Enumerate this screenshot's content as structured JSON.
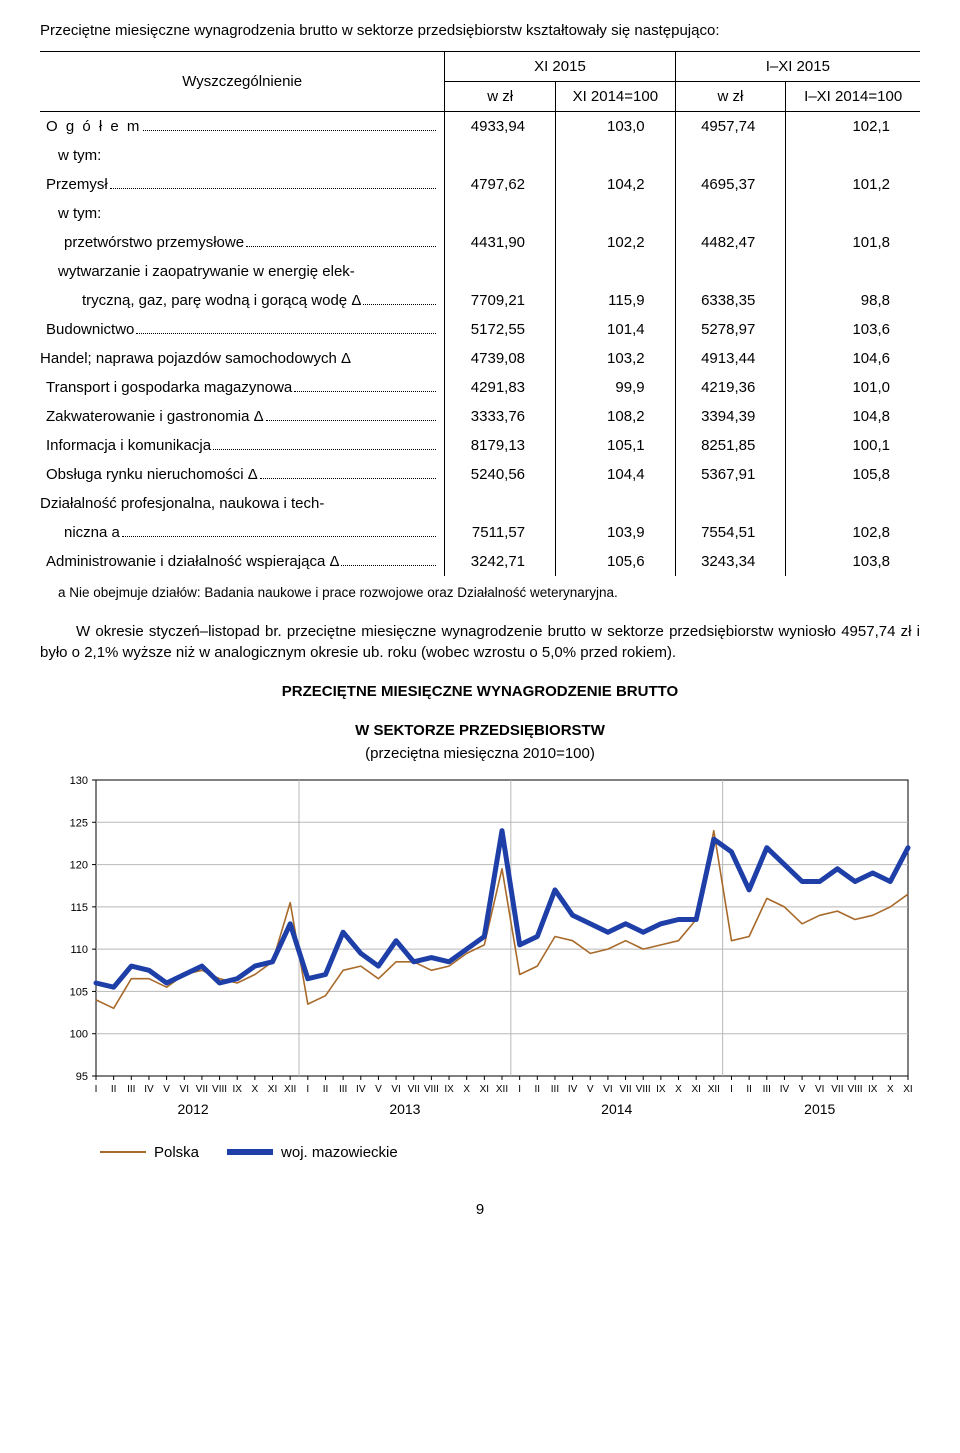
{
  "intro": "Przeciętne miesięczne wynagrodzenia brutto w sektorze przedsiębiorstw kształtowały się następująco:",
  "table": {
    "header": {
      "rowLabel": "Wyszczególnienie",
      "period1": "XI 2015",
      "period2": "I–XI 2015",
      "col1": "w zł",
      "col2": "XI 2014=100",
      "col3": "w zł",
      "col4": "I–XI 2014=100"
    },
    "rows": [
      {
        "label": "O g ó ł e m",
        "spaced": true,
        "indent": 0,
        "c1": "4933,94",
        "c2": "103,0",
        "c3": "4957,74",
        "c4": "102,1"
      },
      {
        "label": "w tym:",
        "indent": 1,
        "plain": true
      },
      {
        "label": "Przemysł",
        "indent": 0,
        "c1": "4797,62",
        "c2": "104,2",
        "c3": "4695,37",
        "c4": "101,2"
      },
      {
        "label": "w tym:",
        "indent": 1,
        "plain": true
      },
      {
        "label": "przetwórstwo przemysłowe",
        "indent": 1,
        "c1": "4431,90",
        "c2": "102,2",
        "c3": "4482,47",
        "c4": "101,8"
      },
      {
        "label": "wytwarzanie i zaopatrywanie w energię elek-",
        "indent": 1,
        "plain": true
      },
      {
        "label": "tryczną, gaz, parę wodną i gorącą wodę Δ",
        "indent": 2,
        "c1": "7709,21",
        "c2": "115,9",
        "c3": "6338,35",
        "c4": "98,8"
      },
      {
        "label": "Budownictwo",
        "indent": 0,
        "c1": "5172,55",
        "c2": "101,4",
        "c3": "5278,97",
        "c4": "103,6"
      },
      {
        "label": "Handel; naprawa pojazdów samochodowych Δ",
        "indent": 0,
        "nodots": true,
        "c1": "4739,08",
        "c2": "103,2",
        "c3": "4913,44",
        "c4": "104,6"
      },
      {
        "label": "Transport i gospodarka magazynowa",
        "indent": 0,
        "c1": "4291,83",
        "c2": "99,9",
        "c3": "4219,36",
        "c4": "101,0"
      },
      {
        "label": "Zakwaterowanie i gastronomia Δ",
        "indent": 0,
        "c1": "3333,76",
        "c2": "108,2",
        "c3": "3394,39",
        "c4": "104,8"
      },
      {
        "label": "Informacja i komunikacja",
        "indent": 0,
        "c1": "8179,13",
        "c2": "105,1",
        "c3": "8251,85",
        "c4": "100,1"
      },
      {
        "label": "Obsługa rynku nieruchomości Δ",
        "indent": 0,
        "c1": "5240,56",
        "c2": "104,4",
        "c3": "5367,91",
        "c4": "105,8"
      },
      {
        "label": "Działalność profesjonalna, naukowa i tech-",
        "indent": 0,
        "plain": true
      },
      {
        "label": "niczna a",
        "indent": 1,
        "c1": "7511,57",
        "c2": "103,9",
        "c3": "7554,51",
        "c4": "102,8"
      },
      {
        "label": "Administrowanie i działalność wspierająca Δ",
        "indent": 0,
        "c1": "3242,71",
        "c2": "105,6",
        "c3": "3243,34",
        "c4": "103,8"
      }
    ]
  },
  "footnote": "a Nie obejmuje działów: Badania naukowe i prace rozwojowe oraz Działalność weterynaryjna.",
  "paragraph": "W okresie styczeń–listopad br. przeciętne miesięczne wynagrodzenie brutto w sektorze przedsiębiorstw wyniosło 4957,74 zł i było o 2,1% wyższe niż w analogicznym okresie ub. roku (wobec wzrostu o 5,0% przed rokiem).",
  "chart": {
    "title1": "PRZECIĘTNE  MIESIĘCZNE  WYNAGRODZENIE  BRUTTO",
    "title2": "W  SEKTORZE  PRZEDSIĘBIORSTW",
    "subtitle": "(przeciętna miesięczna 2010=100)",
    "type": "line",
    "ylim": [
      95,
      130
    ],
    "ytick_step": 5,
    "yticks": [
      95,
      100,
      105,
      110,
      115,
      120,
      125,
      130
    ],
    "xlabels_months": [
      "I",
      "II",
      "III",
      "IV",
      "V",
      "VI",
      "VII",
      "VIII",
      "IX",
      "X",
      "XI",
      "XII"
    ],
    "years": [
      "2012",
      "2013",
      "2014",
      "2015"
    ],
    "n_points": 47,
    "background_color": "#ffffff",
    "plot_bg": "#ffffff",
    "grid_color": "#b8b8b8",
    "axis_color": "#000000",
    "tick_fontsize": 11,
    "year_fontsize": 14,
    "series": {
      "polska": {
        "label": "Polska",
        "color": "#a86a2a",
        "width": 1.6,
        "values": [
          104.0,
          103.0,
          106.5,
          106.5,
          105.5,
          107.0,
          107.5,
          106.5,
          106.0,
          107.0,
          108.5,
          115.5,
          103.5,
          104.5,
          107.5,
          108.0,
          106.5,
          108.5,
          108.5,
          107.5,
          108.0,
          109.5,
          110.5,
          119.5,
          107.0,
          108.0,
          111.5,
          111.0,
          109.5,
          110.0,
          111.0,
          110.0,
          110.5,
          111.0,
          113.5,
          124.0,
          111.0,
          111.5,
          116.0,
          115.0,
          113.0,
          114.0,
          114.5,
          113.5,
          114.0,
          115.0,
          116.5
        ]
      },
      "mazowieckie": {
        "label": "woj. mazowieckie",
        "color": "#1f3fa8",
        "width": 5,
        "values": [
          106.0,
          105.5,
          108.0,
          107.5,
          106.0,
          107.0,
          108.0,
          106.0,
          106.5,
          108.0,
          108.5,
          113.0,
          106.5,
          107.0,
          112.0,
          109.5,
          108.0,
          111.0,
          108.5,
          109.0,
          108.5,
          110.0,
          111.5,
          124.0,
          110.5,
          111.5,
          117.0,
          114.0,
          113.0,
          112.0,
          113.0,
          112.0,
          113.0,
          113.5,
          113.5,
          123.0,
          121.5,
          117.0,
          122.0,
          120.0,
          118.0,
          118.0,
          119.5,
          118.0,
          119.0,
          118.0,
          122.0
        ]
      }
    }
  },
  "legend": {
    "polska": "Polska",
    "mazowieckie": "woj. mazowieckie"
  },
  "pageNumber": "9"
}
